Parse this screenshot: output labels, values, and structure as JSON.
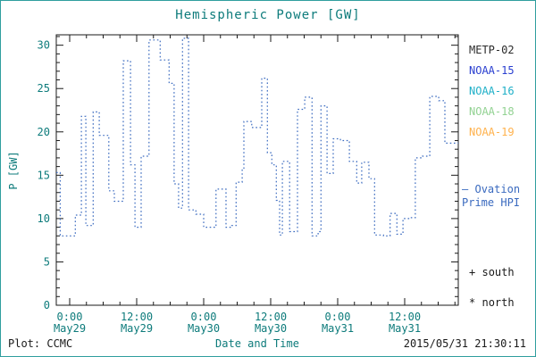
{
  "window": {
    "border_color": "#2f9e9e",
    "background": "#ffffff"
  },
  "chart_data": {
    "type": "line",
    "title": "Hemispheric Power [GW]",
    "xlabel": "Date and Time",
    "ylabel": "P [GW]",
    "line_style": "dotted-step",
    "line_color": "#3a6abf",
    "axis_color": "#1a1a1a",
    "tick_label_color": "#0d7b7b",
    "xlim_hours": [
      -2.4,
      69.6
    ],
    "ylim": [
      0,
      31.2
    ],
    "yticks": [
      0,
      5,
      10,
      15,
      20,
      25,
      30
    ],
    "xticks": [
      {
        "hour": 0,
        "time": "0:00",
        "date": "May29"
      },
      {
        "hour": 12,
        "time": "12:00",
        "date": "May29"
      },
      {
        "hour": 24,
        "time": "0:00",
        "date": "May30"
      },
      {
        "hour": 36,
        "time": "12:00",
        "date": "May30"
      },
      {
        "hour": 48,
        "time": "0:00",
        "date": "May31"
      },
      {
        "hour": 60,
        "time": "12:00",
        "date": "May31"
      }
    ],
    "series": [
      {
        "name": "Ovation Prime HPI",
        "units": "GW",
        "steps_hour_value": [
          [
            -2.4,
            15.3
          ],
          [
            -1.7,
            8.0
          ],
          [
            1.0,
            10.4
          ],
          [
            2.1,
            21.8
          ],
          [
            2.9,
            9.2
          ],
          [
            4.2,
            22.3
          ],
          [
            5.3,
            19.6
          ],
          [
            7.0,
            13.2
          ],
          [
            8.0,
            12.0
          ],
          [
            9.6,
            28.2
          ],
          [
            10.9,
            16.2
          ],
          [
            11.7,
            9.0
          ],
          [
            12.8,
            17.2
          ],
          [
            14.2,
            30.6
          ],
          [
            16.2,
            28.3
          ],
          [
            17.8,
            25.6
          ],
          [
            18.7,
            14.0
          ],
          [
            19.5,
            11.2
          ],
          [
            20.2,
            30.8
          ],
          [
            21.3,
            11.0
          ],
          [
            22.6,
            10.5
          ],
          [
            24.0,
            9.0
          ],
          [
            26.2,
            13.4
          ],
          [
            28.0,
            9.0
          ],
          [
            29.0,
            9.2
          ],
          [
            29.8,
            14.2
          ],
          [
            30.9,
            15.6
          ],
          [
            31.2,
            21.2
          ],
          [
            32.6,
            20.5
          ],
          [
            34.4,
            26.2
          ],
          [
            35.4,
            17.6
          ],
          [
            36.2,
            16.2
          ],
          [
            37.0,
            12.1
          ],
          [
            37.6,
            8.1
          ],
          [
            38.1,
            16.6
          ],
          [
            39.4,
            8.5
          ],
          [
            40.8,
            22.6
          ],
          [
            42.1,
            24.0
          ],
          [
            43.4,
            8.0
          ],
          [
            44.5,
            8.5
          ],
          [
            45.0,
            23.0
          ],
          [
            46.1,
            15.2
          ],
          [
            47.2,
            19.2
          ],
          [
            48.5,
            19.0
          ],
          [
            50.1,
            16.6
          ],
          [
            51.4,
            14.1
          ],
          [
            52.3,
            16.5
          ],
          [
            53.6,
            14.6
          ],
          [
            54.6,
            8.1
          ],
          [
            56.2,
            8.0
          ],
          [
            57.4,
            10.6
          ],
          [
            58.6,
            8.2
          ],
          [
            59.7,
            10.0
          ],
          [
            61.0,
            10.1
          ],
          [
            61.9,
            17.0
          ],
          [
            63.2,
            17.2
          ],
          [
            64.5,
            24.1
          ],
          [
            66.1,
            23.6
          ],
          [
            67.2,
            18.7
          ]
        ]
      }
    ]
  },
  "legend": {
    "satellites": [
      {
        "name": "METP-02",
        "color": "#2b2b2b"
      },
      {
        "name": "NOAA-15",
        "color": "#2a3fd0"
      },
      {
        "name": "NOAA-16",
        "color": "#1fb0c8"
      },
      {
        "name": "NOAA-18",
        "color": "#92d292"
      },
      {
        "name": "NOAA-19",
        "color": "#ffb24d"
      }
    ],
    "line_legend": {
      "dash": "—",
      "line1": "Ovation",
      "line2": "Prime HPI",
      "color": "#3a6abf"
    },
    "markers": [
      {
        "symbol": "+",
        "label": "south"
      },
      {
        "symbol": "*",
        "label": "north"
      }
    ]
  },
  "footer": {
    "left": "Plot: CCMC",
    "right": "2015/05/31 21:30:11"
  }
}
